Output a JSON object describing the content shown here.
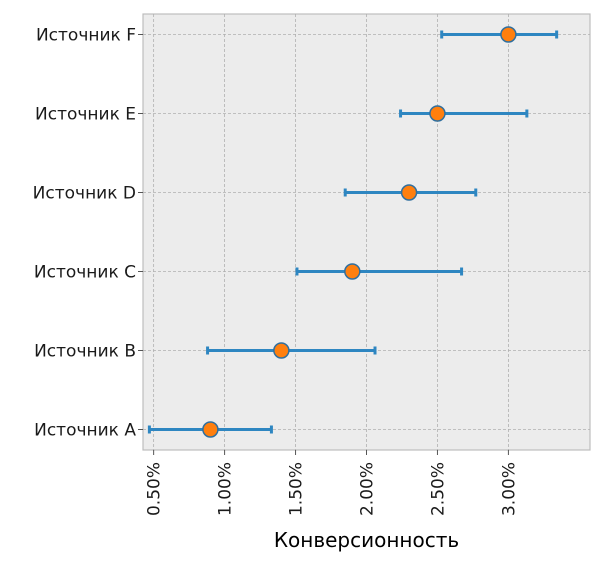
{
  "chart_data": {
    "type": "scatter",
    "subtype": "horizontal-errorbar",
    "title": "",
    "xlabel": "Конверсионность",
    "ylabel": "",
    "categories": [
      "Источник A",
      "Источник B",
      "Источник C",
      "Источник D",
      "Источник E",
      "Источник F"
    ],
    "values": [
      0.009,
      0.014,
      0.019,
      0.023,
      0.025,
      0.03
    ],
    "ci_low": [
      0.0047,
      0.0088,
      0.0151,
      0.0185,
      0.0224,
      0.0253
    ],
    "ci_high": [
      0.0133,
      0.0206,
      0.0267,
      0.0277,
      0.0313,
      0.0334
    ],
    "x_ticks": [
      0.005,
      0.01,
      0.015,
      0.02,
      0.025,
      0.03
    ],
    "x_tick_labels": [
      "0.50%",
      "1.00%",
      "1.50%",
      "2.00%",
      "2.50%",
      "3.00%"
    ],
    "xlim": [
      0.00425,
      0.03575
    ],
    "grid": true,
    "legend": "none",
    "colors": {
      "point_fill": "#ff7f0e",
      "point_edge": "#2f6f9f",
      "errorbar": "#2e86c1",
      "plot_background": "#ececec",
      "grid": "#b0b0b0",
      "frame": "#bdbdbd"
    }
  }
}
